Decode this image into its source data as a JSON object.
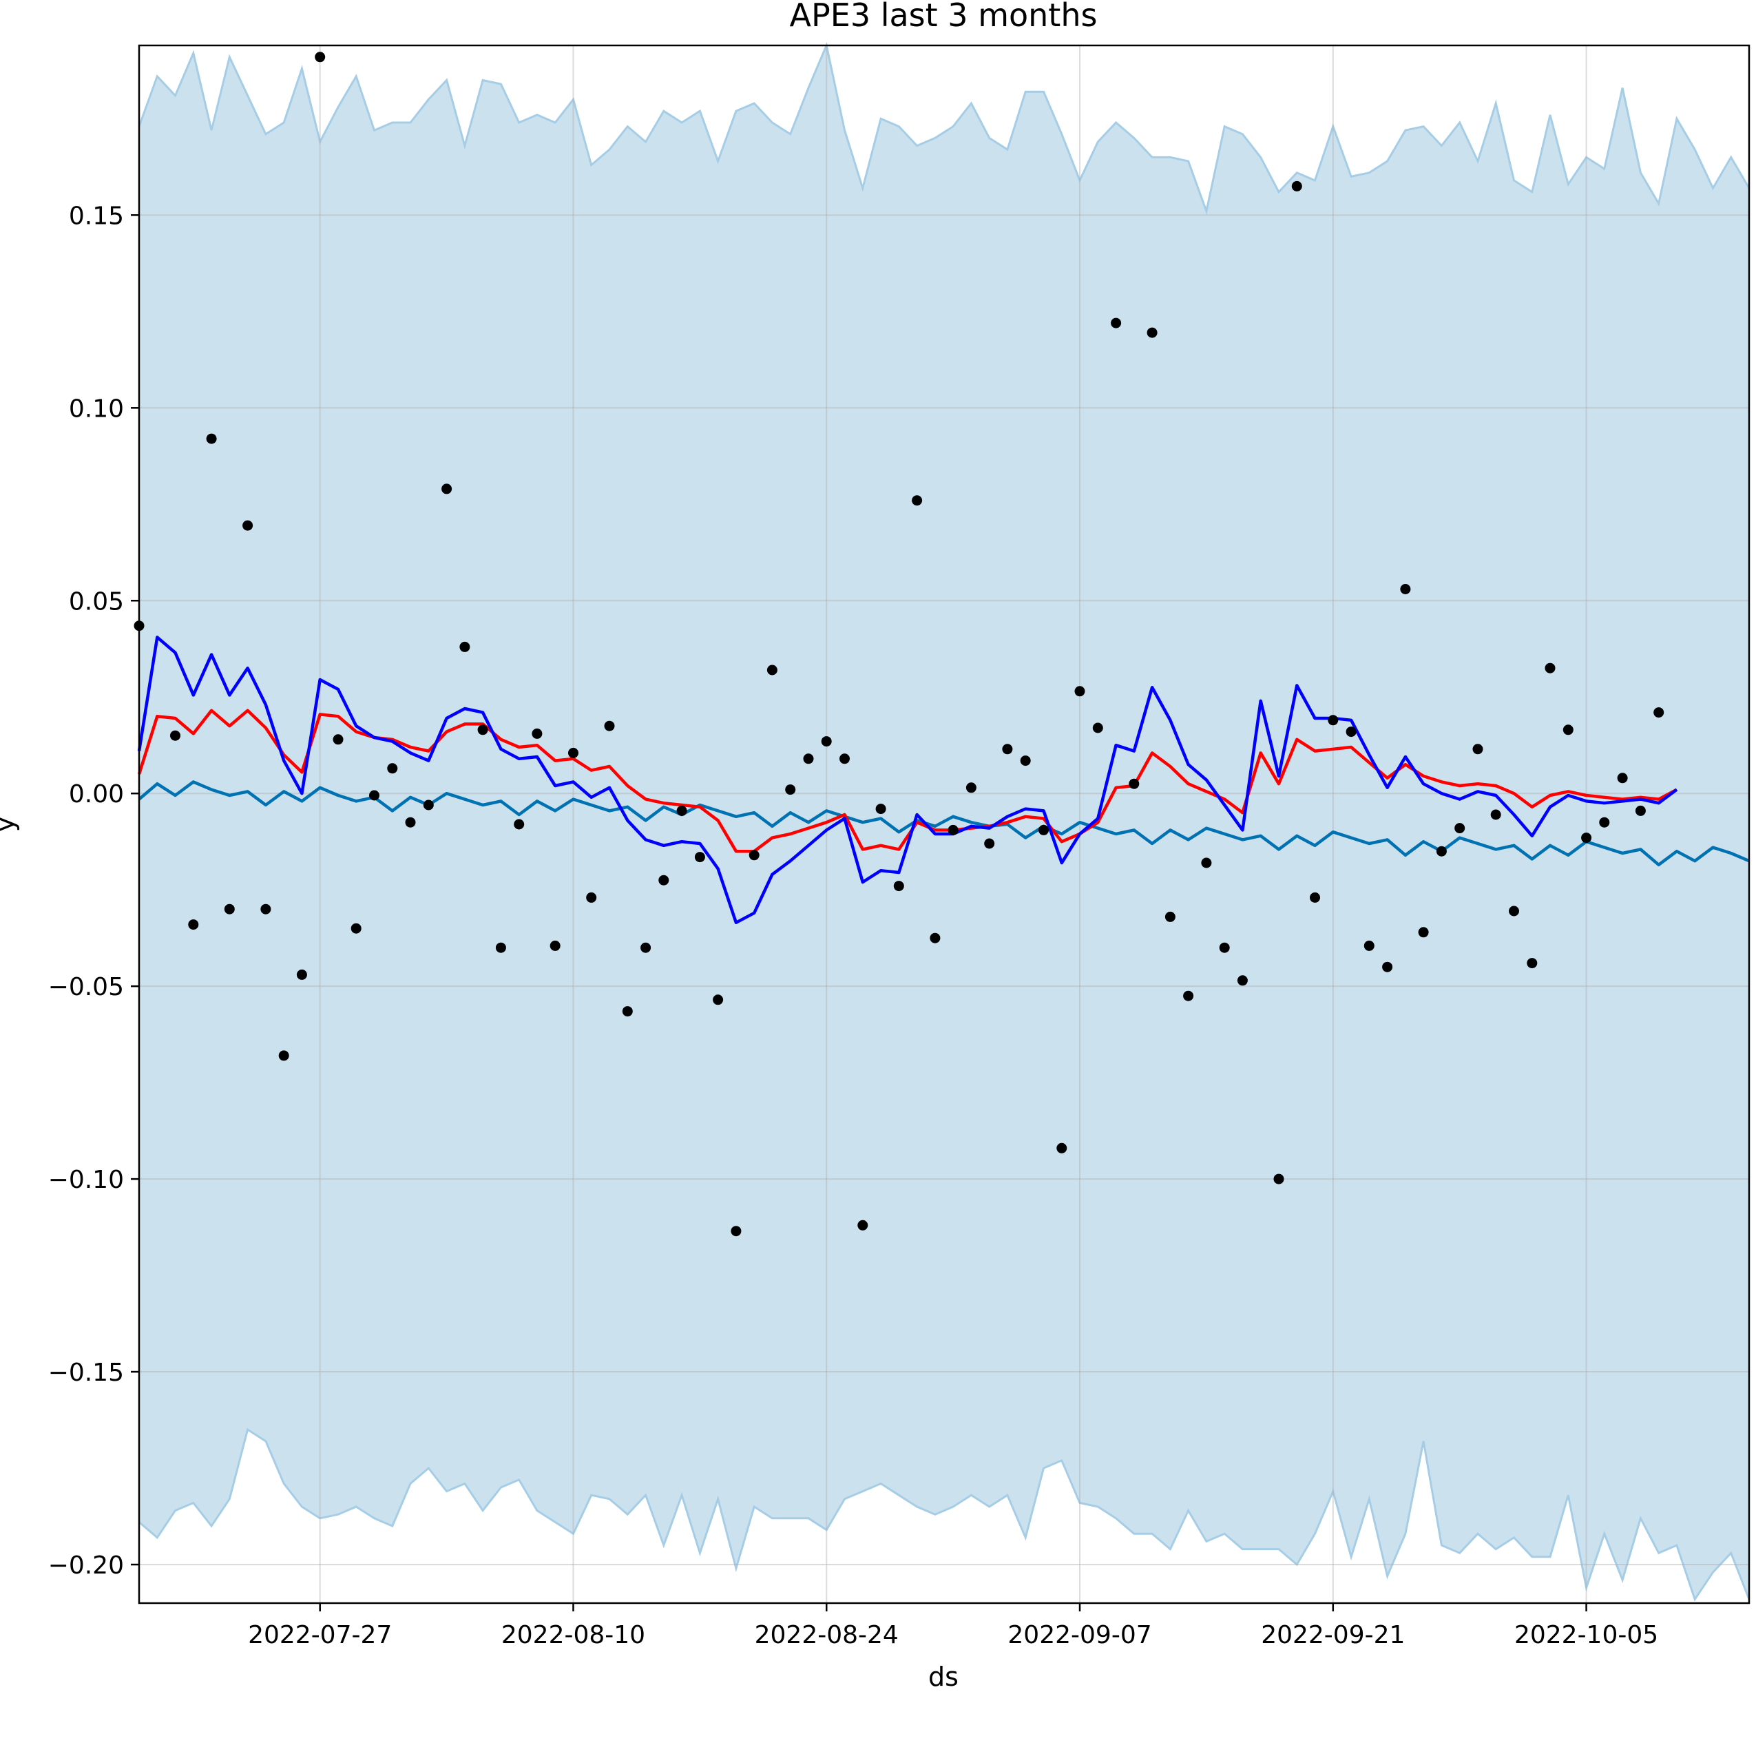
{
  "chart_data": {
    "type": "line",
    "title": "APE3 last 3 months",
    "xlabel": "ds",
    "ylabel": "y",
    "grid": true,
    "start_date": "2022-07-17",
    "xlim_days": [
      0,
      89
    ],
    "ylim": [
      -0.21,
      0.194
    ],
    "y_ticks": [
      0.15,
      0.1,
      0.05,
      0.0,
      -0.05,
      -0.1,
      -0.15,
      -0.2
    ],
    "y_tick_labels": [
      "0.15",
      "0.10",
      "0.05",
      "0.00",
      "−0.05",
      "−0.10",
      "−0.15",
      "−0.20"
    ],
    "x_ticks": [
      10,
      24,
      38,
      52,
      66,
      80
    ],
    "x_tick_labels": [
      "2022-07-27",
      "2022-08-10",
      "2022-08-24",
      "2022-09-07",
      "2022-09-21",
      "2022-10-05"
    ],
    "colors": {
      "band_fill": "#cce1ee",
      "band_edge": "#a6cde6",
      "forecast": "#0072b2",
      "red_series": "#ff0000",
      "blue_series": "#0000ff",
      "points": "#000000",
      "grid": "#b0b0b0"
    },
    "series": [
      {
        "name": "yhat_upper",
        "values": [
          0.173,
          0.186,
          0.181,
          0.192,
          0.172,
          0.191,
          0.181,
          0.171,
          0.174,
          0.188,
          0.169,
          0.178,
          0.186,
          0.172,
          0.174,
          0.174,
          0.18,
          0.185,
          0.168,
          0.185,
          0.184,
          0.174,
          0.176,
          0.174,
          0.18,
          0.163,
          0.167,
          0.173,
          0.169,
          0.177,
          0.174,
          0.177,
          0.164,
          0.177,
          0.179,
          0.174,
          0.171,
          0.183,
          0.194,
          0.172,
          0.157,
          0.175,
          0.173,
          0.168,
          0.17,
          0.173,
          0.179,
          0.17,
          0.167,
          0.182,
          0.182,
          0.171,
          0.159,
          0.169,
          0.174,
          0.17,
          0.165,
          0.165,
          0.164,
          0.151,
          0.173,
          0.171,
          0.165,
          0.156,
          0.161,
          0.159,
          0.173,
          0.16,
          0.161,
          0.164,
          0.172,
          0.173,
          0.168,
          0.174,
          0.164,
          0.179,
          0.159,
          0.156,
          0.176,
          0.158,
          0.165,
          0.162,
          0.183,
          0.161,
          0.153,
          0.175,
          0.167,
          0.157,
          0.165,
          0.157
        ]
      },
      {
        "name": "yhat_lower",
        "values": [
          -0.189,
          -0.193,
          -0.186,
          -0.184,
          -0.19,
          -0.183,
          -0.165,
          -0.168,
          -0.179,
          -0.185,
          -0.188,
          -0.187,
          -0.185,
          -0.188,
          -0.19,
          -0.179,
          -0.175,
          -0.181,
          -0.179,
          -0.186,
          -0.18,
          -0.178,
          -0.186,
          -0.189,
          -0.192,
          -0.182,
          -0.183,
          -0.187,
          -0.182,
          -0.195,
          -0.182,
          -0.197,
          -0.183,
          -0.201,
          -0.185,
          -0.188,
          -0.188,
          -0.188,
          -0.191,
          -0.183,
          -0.181,
          -0.179,
          -0.182,
          -0.185,
          -0.187,
          -0.185,
          -0.182,
          -0.185,
          -0.182,
          -0.193,
          -0.175,
          -0.173,
          -0.184,
          -0.185,
          -0.188,
          -0.192,
          -0.192,
          -0.196,
          -0.186,
          -0.194,
          -0.192,
          -0.196,
          -0.196,
          -0.196,
          -0.2,
          -0.192,
          -0.181,
          -0.198,
          -0.183,
          -0.203,
          -0.192,
          -0.168,
          -0.195,
          -0.197,
          -0.192,
          -0.196,
          -0.193,
          -0.198,
          -0.198,
          -0.182,
          -0.206,
          -0.192,
          -0.204,
          -0.188,
          -0.197,
          -0.195,
          -0.209,
          -0.202,
          -0.197,
          -0.209
        ]
      },
      {
        "name": "yhat",
        "values": [
          -0.0015,
          0.0025,
          -0.0005,
          0.003,
          0.001,
          -0.0005,
          0.0005,
          -0.003,
          0.0005,
          -0.002,
          0.0015,
          -0.0005,
          -0.002,
          -0.001,
          -0.0045,
          -0.001,
          -0.003,
          0.0,
          -0.0015,
          -0.003,
          -0.002,
          -0.0055,
          -0.002,
          -0.0045,
          -0.0015,
          -0.003,
          -0.0045,
          -0.0035,
          -0.007,
          -0.0035,
          -0.0055,
          -0.003,
          -0.0045,
          -0.006,
          -0.005,
          -0.0085,
          -0.005,
          -0.0075,
          -0.0045,
          -0.006,
          -0.0075,
          -0.0065,
          -0.01,
          -0.007,
          -0.0085,
          -0.006,
          -0.0075,
          -0.0085,
          -0.008,
          -0.0115,
          -0.0085,
          -0.0105,
          -0.0075,
          -0.009,
          -0.0105,
          -0.0095,
          -0.013,
          -0.0095,
          -0.012,
          -0.009,
          -0.0105,
          -0.012,
          -0.011,
          -0.0145,
          -0.011,
          -0.0135,
          -0.01,
          -0.0115,
          -0.013,
          -0.012,
          -0.016,
          -0.0125,
          -0.015,
          -0.0115,
          -0.013,
          -0.0145,
          -0.0135,
          -0.017,
          -0.0135,
          -0.016,
          -0.0125,
          -0.014,
          -0.0155,
          -0.0145,
          -0.0185,
          -0.015,
          -0.0175,
          -0.014,
          -0.0155,
          -0.0175
        ]
      },
      {
        "name": "red",
        "values": [
          0.005,
          0.02,
          0.0195,
          0.0155,
          0.0215,
          0.0175,
          0.0215,
          0.017,
          0.01,
          0.0055,
          0.0205,
          0.02,
          0.016,
          0.0145,
          0.014,
          0.012,
          0.011,
          0.016,
          0.018,
          0.018,
          0.014,
          0.012,
          0.0125,
          0.0085,
          0.009,
          0.006,
          0.007,
          0.002,
          -0.0015,
          -0.0025,
          -0.003,
          -0.0035,
          -0.007,
          -0.015,
          -0.015,
          -0.0115,
          -0.0105,
          -0.009,
          -0.0075,
          -0.0055,
          -0.0145,
          -0.0135,
          -0.0145,
          -0.0075,
          -0.0095,
          -0.0095,
          -0.009,
          -0.0085,
          -0.0075,
          -0.006,
          -0.0065,
          -0.0125,
          -0.0105,
          -0.0075,
          0.0015,
          0.002,
          0.0105,
          0.007,
          0.0025,
          0.0005,
          -0.0015,
          -0.005,
          0.0105,
          0.0025,
          0.014,
          0.011,
          0.0115,
          0.012,
          0.008,
          0.004,
          0.0075,
          0.0045,
          0.003,
          0.002,
          0.0025,
          0.002,
          0.0,
          -0.0035,
          -0.0005,
          0.0005,
          -0.0005,
          -0.001,
          -0.0015,
          -0.001,
          -0.0015,
          0.001
        ]
      },
      {
        "name": "blue",
        "values": [
          0.011,
          0.0405,
          0.0365,
          0.0255,
          0.036,
          0.0255,
          0.0325,
          0.023,
          0.0085,
          0.0,
          0.0295,
          0.027,
          0.0175,
          0.0145,
          0.0135,
          0.0105,
          0.0085,
          0.0195,
          0.022,
          0.021,
          0.0115,
          0.009,
          0.0095,
          0.002,
          0.003,
          -0.001,
          0.0015,
          -0.007,
          -0.012,
          -0.0135,
          -0.0125,
          -0.013,
          -0.0195,
          -0.0335,
          -0.031,
          -0.021,
          -0.0175,
          -0.0135,
          -0.0095,
          -0.0065,
          -0.023,
          -0.02,
          -0.0205,
          -0.0055,
          -0.0105,
          -0.0105,
          -0.0085,
          -0.009,
          -0.006,
          -0.004,
          -0.0045,
          -0.018,
          -0.0105,
          -0.0065,
          0.0125,
          0.011,
          0.0275,
          0.019,
          0.0075,
          0.0035,
          -0.003,
          -0.0095,
          0.024,
          0.0045,
          0.028,
          0.0195,
          0.0195,
          0.019,
          0.01,
          0.0015,
          0.0095,
          0.0025,
          0.0,
          -0.0015,
          0.0005,
          -0.0005,
          -0.0055,
          -0.011,
          -0.0035,
          -0.0005,
          -0.002,
          -0.0025,
          -0.002,
          -0.0015,
          -0.0025,
          0.001
        ]
      }
    ],
    "points": [
      {
        "x": 0,
        "y": 0.0435
      },
      {
        "x": 2,
        "y": 0.015
      },
      {
        "x": 3,
        "y": -0.034
      },
      {
        "x": 4,
        "y": 0.092
      },
      {
        "x": 5,
        "y": -0.03
      },
      {
        "x": 6,
        "y": 0.0695
      },
      {
        "x": 7,
        "y": -0.03
      },
      {
        "x": 8,
        "y": -0.068
      },
      {
        "x": 9,
        "y": -0.047
      },
      {
        "x": 10,
        "y": 0.191
      },
      {
        "x": 11,
        "y": 0.014
      },
      {
        "x": 12,
        "y": -0.035
      },
      {
        "x": 13,
        "y": -0.0005
      },
      {
        "x": 14,
        "y": 0.0065
      },
      {
        "x": 15,
        "y": -0.0075
      },
      {
        "x": 16,
        "y": -0.003
      },
      {
        "x": 17,
        "y": 0.079
      },
      {
        "x": 18,
        "y": 0.038
      },
      {
        "x": 19,
        "y": 0.0165
      },
      {
        "x": 20,
        "y": -0.04
      },
      {
        "x": 21,
        "y": -0.008
      },
      {
        "x": 22,
        "y": 0.0155
      },
      {
        "x": 23,
        "y": -0.0395
      },
      {
        "x": 24,
        "y": 0.0105
      },
      {
        "x": 25,
        "y": -0.027
      },
      {
        "x": 26,
        "y": 0.0175
      },
      {
        "x": 27,
        "y": -0.0565
      },
      {
        "x": 28,
        "y": -0.04
      },
      {
        "x": 29,
        "y": -0.0225
      },
      {
        "x": 30,
        "y": -0.0045
      },
      {
        "x": 31,
        "y": -0.0165
      },
      {
        "x": 32,
        "y": -0.0535
      },
      {
        "x": 33,
        "y": -0.1135
      },
      {
        "x": 34,
        "y": -0.016
      },
      {
        "x": 35,
        "y": 0.032
      },
      {
        "x": 36,
        "y": 0.001
      },
      {
        "x": 37,
        "y": 0.009
      },
      {
        "x": 38,
        "y": 0.0135
      },
      {
        "x": 39,
        "y": 0.009
      },
      {
        "x": 40,
        "y": -0.112
      },
      {
        "x": 41,
        "y": -0.004
      },
      {
        "x": 42,
        "y": -0.024
      },
      {
        "x": 43,
        "y": 0.076
      },
      {
        "x": 44,
        "y": -0.0375
      },
      {
        "x": 45,
        "y": -0.0095
      },
      {
        "x": 46,
        "y": 0.0015
      },
      {
        "x": 47,
        "y": -0.013
      },
      {
        "x": 48,
        "y": 0.0115
      },
      {
        "x": 49,
        "y": 0.0085
      },
      {
        "x": 50,
        "y": -0.0095
      },
      {
        "x": 51,
        "y": -0.092
      },
      {
        "x": 52,
        "y": 0.0265
      },
      {
        "x": 53,
        "y": 0.017
      },
      {
        "x": 54,
        "y": 0.122
      },
      {
        "x": 55,
        "y": 0.0025
      },
      {
        "x": 56,
        "y": 0.1195
      },
      {
        "x": 57,
        "y": -0.032
      },
      {
        "x": 58,
        "y": -0.0525
      },
      {
        "x": 59,
        "y": -0.018
      },
      {
        "x": 60,
        "y": -0.04
      },
      {
        "x": 61,
        "y": -0.0485
      },
      {
        "x": 63,
        "y": -0.1
      },
      {
        "x": 64,
        "y": 0.1575
      },
      {
        "x": 65,
        "y": -0.027
      },
      {
        "x": 66,
        "y": 0.019
      },
      {
        "x": 67,
        "y": 0.016
      },
      {
        "x": 68,
        "y": -0.0395
      },
      {
        "x": 69,
        "y": -0.045
      },
      {
        "x": 70,
        "y": 0.053
      },
      {
        "x": 71,
        "y": -0.036
      },
      {
        "x": 72,
        "y": -0.015
      },
      {
        "x": 73,
        "y": -0.009
      },
      {
        "x": 74,
        "y": 0.0115
      },
      {
        "x": 75,
        "y": -0.0055
      },
      {
        "x": 76,
        "y": -0.0305
      },
      {
        "x": 77,
        "y": -0.044
      },
      {
        "x": 78,
        "y": 0.0325
      },
      {
        "x": 79,
        "y": 0.0165
      },
      {
        "x": 80,
        "y": -0.0115
      },
      {
        "x": 81,
        "y": -0.0075
      },
      {
        "x": 82,
        "y": 0.004
      },
      {
        "x": 83,
        "y": -0.0045
      },
      {
        "x": 84,
        "y": 0.021
      }
    ]
  }
}
